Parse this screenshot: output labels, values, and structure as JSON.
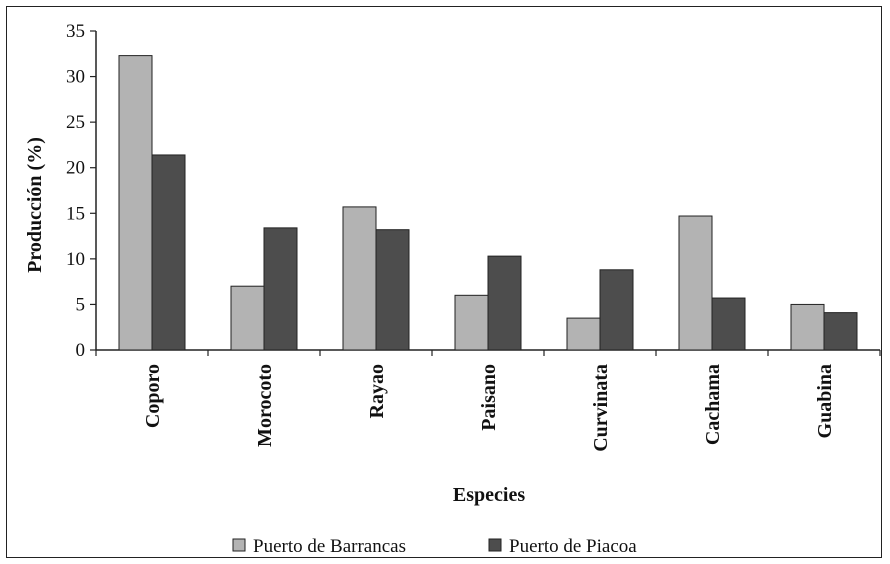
{
  "chart_data": {
    "type": "bar",
    "title": "",
    "xlabel": "Especies",
    "ylabel": "Producción (%)",
    "ylim": [
      0,
      35
    ],
    "yticks": [
      0,
      5,
      10,
      15,
      20,
      25,
      30,
      35
    ],
    "grid": false,
    "legend_position": "bottom",
    "categories": [
      "Coporo",
      "Morocoto",
      "Rayao",
      "Paisano",
      "Curvinata",
      "Cachama",
      "Guabina"
    ],
    "series": [
      {
        "name": "Puerto de Barrancas",
        "color": "#b3b3b3",
        "values": [
          32.3,
          7.0,
          15.7,
          6.0,
          3.5,
          14.7,
          5.0
        ]
      },
      {
        "name": "Puerto de Piacoa",
        "color": "#4d4d4d",
        "values": [
          21.4,
          13.4,
          13.2,
          10.3,
          8.8,
          5.7,
          4.1
        ]
      }
    ]
  }
}
